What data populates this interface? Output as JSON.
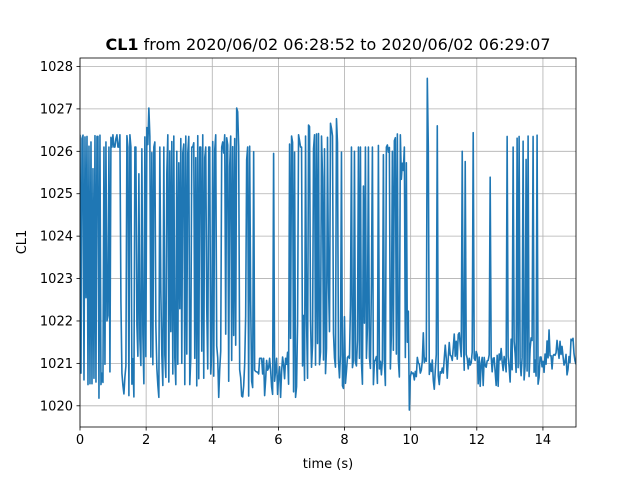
{
  "chart_data": {
    "type": "line",
    "title_bold": "CL1",
    "title_rest": " from 2020/06/02 06:28:52 to 2020/06/02 06:29:07",
    "xlabel": "time (s)",
    "ylabel": "CL1",
    "xlim": [
      0,
      15
    ],
    "ylim": [
      1019.5,
      1028.2
    ],
    "xticks": [
      0,
      2,
      4,
      6,
      8,
      10,
      12,
      14
    ],
    "yticks": [
      1020,
      1021,
      1022,
      1023,
      1024,
      1025,
      1026,
      1027,
      1028
    ],
    "grid": true,
    "line_color": "#1f77b4",
    "x_start": 0,
    "x_end": 15,
    "sample_count": 500,
    "values": [
      1026.39,
      1020.77,
      1026.3,
      1026.38,
      1020.61,
      1026.34,
      1022.55,
      1026.35,
      1020.5,
      1026.12,
      1020.52,
      1026.22,
      1020.52,
      1025.59,
      1020.65,
      1026.37,
      1020.56,
      1026.35,
      1026.35,
      1020.18,
      1026.38,
      1020.5,
      1020.77,
      1020.55,
      1026.1,
      1020.98,
      1026.22,
      1022.0,
      1022.13,
      1026.1,
      1020.8,
      1026.33,
      1026.1,
      1026.39,
      1026.1,
      1026.1,
      1026.3,
      1026.39,
      1026.1,
      1026.1,
      1026.39,
      1022.46,
      1020.77,
      1020.48,
      1020.28,
      1020.68,
      1020.94,
      1026.37,
      1026.1,
      1020.24,
      1026.39,
      1026.1,
      1020.51,
      1021.11,
      1020.21,
      1026.1,
      1026.1,
      1021.92,
      1021.17,
      1025.47,
      1021.57,
      1020.95,
      1026.06,
      1021.68,
      1020.52,
      1026.34,
      1021.16,
      1026.56,
      1026.16,
      1027.02,
      1026.35,
      1021.15,
      1025.97,
      1020.97,
      1026.1,
      1026.22,
      1021.89,
      1020.89,
      1020.49,
      1020.2,
      1026.1,
      1022.72,
      1021.19,
      1020.48,
      1026.1,
      1021.2,
      1020.67,
      1025.49,
      1026.39,
      1020.56,
      1026.01,
      1021.75,
      1026.23,
      1020.75,
      1026.36,
      1021.13,
      1020.5,
      1026.0,
      1020.98,
      1025.73,
      1022.29,
      1026.3,
      1021.0,
      1025.96,
      1026.17,
      1020.5,
      1026.36,
      1021.22,
      1025.96,
      1026.35,
      1020.5,
      1021.12,
      1026.1,
      1026.1,
      1026.2,
      1021.12,
      1025.85,
      1020.47,
      1026.37,
      1020.64,
      1026.1,
      1026.1,
      1021.29,
      1026.39,
      1020.65,
      1025.85,
      1026.1,
      1022.32,
      1020.87,
      1026.1,
      1026.1,
      1020.75,
      1021.21,
      1026.23,
      1020.7,
      1026.03,
      1026.39,
      1021.41,
      1021.13,
      1020.2,
      1020.86,
      1021.29,
      1026.1,
      1026.22,
      1025.96,
      1026.39,
      1021.69,
      1026.32,
      1026.15,
      1020.58,
      1025.64,
      1026.36,
      1021.07,
      1026.11,
      1021.66,
      1026.3,
      1021.43,
      1027.02,
      1026.93,
      1026.1,
      1020.85,
      1020.66,
      1020.23,
      1020.21,
      1020.47,
      1020.98,
      1022.12,
      1025.8,
      1026.1,
      1020.23,
      1026.12,
      1022.49,
      1020.58,
      1020.43,
      1025.99,
      1020.84,
      1020.81,
      1020.8,
      1020.79,
      1020.75,
      1021.12,
      1021.12,
      1021.12,
      1020.75,
      1021.12,
      1020.24,
      1020.61,
      1021.07,
      1020.84,
      1020.89,
      1021.12,
      1020.84,
      1020.45,
      1020.27,
      1025.95,
      1020.58,
      1020.84,
      1021.12,
      1020.27,
      1020.69,
      1020.92,
      1020.2,
      1020.8,
      1021.15,
      1020.96,
      1020.64,
      1021.12,
      1020.98,
      1021.26,
      1020.51,
      1026.17,
      1021.59,
      1026.36,
      1026.21,
      1020.33,
      1025.98,
      1020.2,
      1020.45,
      1021.92,
      1026.39,
      1026.25,
      1026.1,
      1026.1,
      1020.94,
      1022.13,
      1020.6,
      1026.36,
      1022.04,
      1020.65,
      1026.62,
      1026.58,
      1022.01,
      1020.91,
      1021.43,
      1026.06,
      1026.39,
      1020.96,
      1026.41,
      1021.47,
      1026.42,
      1020.97,
      1021.27,
      1026.36,
      1025.39,
      1021.08,
      1026.06,
      1020.76,
      1021.35,
      1026.33,
      1022.91,
      1021.75,
      1026.66,
      1026.54,
      1026.36,
      1021.71,
      1021.13,
      1020.91,
      1026.77,
      1026.2,
      1021.06,
      1020.66,
      1021.2,
      1025.98,
      1020.47,
      1020.41,
      1022.1,
      1020.53,
      1020.82,
      1021.14,
      1021.17,
      1021.12,
      1022.37,
      1026.1,
      1020.9,
      1021.07,
      1026.0,
      1021.02,
      1020.94,
      1021.54,
      1026.1,
      1021.12,
      1026.1,
      1021.04,
      1020.51,
      1025.18,
      1021.95,
      1026.1,
      1021.12,
      1021.85,
      1026.1,
      1021.15,
      1020.88,
      1022.89,
      1026.1,
      1020.5,
      1021.05,
      1021.08,
      1021.16,
      1020.53,
      1026.14,
      1020.87,
      1021.05,
      1020.73,
      1021.09,
      1025.92,
      1021.04,
      1020.48,
      1026.1,
      1026.15,
      1025.98,
      1026.09,
      1020.87,
      1021.68,
      1026.0,
      1021.31,
      1026.25,
      1026.32,
      1021.22,
      1026.41,
      1021.08,
      1020.68,
      1026.39,
      1025.34,
      1025.72,
      1025.55,
      1026.1,
      1021.14,
      1025.73,
      1021.5,
      1022.23,
      1019.9,
      1020.68,
      1020.8,
      1020.76,
      1020.77,
      1020.61,
      1020.81,
      1020.69,
      1021.14,
      1021.01,
      1020.98,
      1020.77,
      1020.84,
      1021.05,
      1021.72,
      1021.02,
      1021.12,
      1021.05,
      1027.72,
      1026.1,
      1020.74,
      1021.0,
      1020.81,
      1021.08,
      1020.6,
      1020.39,
      1020.84,
      1021.21,
      1026.6,
      1020.71,
      1020.5,
      1020.8,
      1020.77,
      1020.89,
      1020.77,
      1021.12,
      1021.43,
      1021.12,
      1020.65,
      1021.14,
      1021.49,
      1021.19,
      1021.17,
      1021.07,
      1021.37,
      1021.69,
      1021.17,
      1021.52,
      1021.1,
      1021.68,
      1021.72,
      1021.44,
      1021.16,
      1026.0,
      1021.62,
      1020.84,
      1025.76,
      1021.21,
      1021.12,
      1020.87,
      1021.12,
      1020.96,
      1021.01,
      1021.27,
      1026.44,
      1021.12,
      1021.07,
      1021.28,
      1021.2,
      1020.52,
      1021.15,
      1020.46,
      1021.0,
      1021.14,
      1020.48,
      1021.14,
      1020.95,
      1020.91,
      1021.06,
      1021.07,
      1021.2,
      1025.39,
      1021.16,
      1020.8,
      1021.12,
      1021.13,
      1020.8,
      1020.48,
      1021.19,
      1020.46,
      1021.22,
      1021.08,
      1021.35,
      1021.04,
      1020.83,
      1021.16,
      1021.03,
      1020.8,
      1026.35,
      1021.17,
      1020.91,
      1020.56,
      1021.57,
      1020.85,
      1026.1,
      1021.52,
      1021.23,
      1020.79,
      1026.31,
      1020.9,
      1026.35,
      1021.03,
      1020.71,
      1021.14,
      1026.24,
      1020.61,
      1020.94,
      1025.81,
      1020.82,
      1026.36,
      1020.69,
      1021.34,
      1021.6,
      1021.54,
      1026.35,
      1020.79,
      1021.08,
      1020.7,
      1026.38,
      1020.51,
      1020.67,
      1021.15,
      1021.15,
      1020.92,
      1021.05,
      1020.79,
      1021.22,
      1020.98,
      1021.53,
      1021.13,
      1021.79,
      1021.18,
      1021.18,
      1020.87,
      1021.18,
      1021.21,
      1021.19,
      1021.25,
      1021.54,
      1021.32,
      1021.12,
      1021.52,
      1021.21,
      1021.4,
      1021.17,
      1020.96,
      1021.03,
      1021.21,
      1020.73,
      1020.86,
      1021.16,
      1021.02,
      1021.57,
      1021.54,
      1021.59,
      1021.23,
      1021.06,
      1020.98
    ]
  }
}
